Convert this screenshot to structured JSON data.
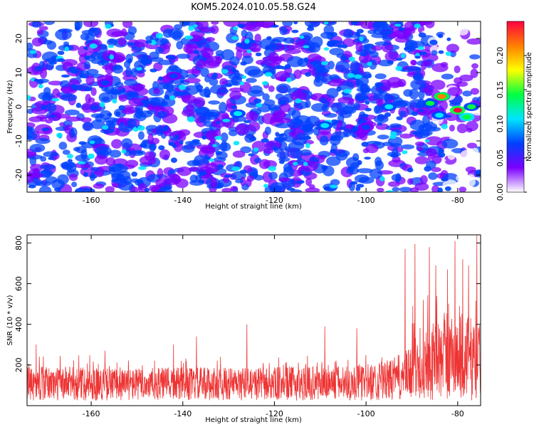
{
  "page_title": "KOM5.2024.010.05.58.G24",
  "chart_data": [
    {
      "type": "heatmap",
      "title": "KOM5.2024.010.05.58.G24",
      "xlabel": "Height of straight line (km)",
      "ylabel": "Frequency (Hz)",
      "xlim": [
        -174,
        -75
      ],
      "ylim": [
        -25,
        25
      ],
      "x_ticks": [
        -160,
        -140,
        -120,
        -100,
        -80
      ],
      "y_ticks": [
        -20,
        -10,
        0,
        10,
        20
      ],
      "colorbar": {
        "label": "Normalized spectral amplitude",
        "range": [
          0,
          0.25
        ],
        "ticks": [
          "0.00",
          "0.05",
          "0.10",
          "0.15",
          "0.20"
        ],
        "colors": [
          "#ffffff",
          "#7b00ff",
          "#0040ff",
          "#00e5ff",
          "#00ff40",
          "#ffff00",
          "#ff7f00",
          "#ff0040"
        ]
      },
      "hotspots": [
        {
          "x": -83.5,
          "y": 3,
          "value": 0.22
        },
        {
          "x": -80,
          "y": -1,
          "value": 0.24
        },
        {
          "x": -86,
          "y": 1,
          "value": 0.14
        },
        {
          "x": -78,
          "y": -3,
          "value": 0.16
        },
        {
          "x": -77,
          "y": 0,
          "value": 0.13
        },
        {
          "x": -84,
          "y": -2.5,
          "value": 0.12
        },
        {
          "x": -128,
          "y": -2,
          "value": 0.11
        },
        {
          "x": -109,
          "y": -5.5,
          "value": 0.1
        },
        {
          "x": -142,
          "y": 9,
          "value": 0.08
        },
        {
          "x": -157,
          "y": 7,
          "value": 0.08
        },
        {
          "x": -95,
          "y": 0,
          "value": 0.09
        },
        {
          "x": -100,
          "y": -6,
          "value": 0.08
        }
      ],
      "grid": false
    },
    {
      "type": "line",
      "xlabel": "Height of straight line (km)",
      "ylabel": "SNR (10 * v/v)",
      "xlim": [
        -174,
        -75
      ],
      "ylim": [
        0,
        840
      ],
      "x_ticks": [
        -160,
        -140,
        -120,
        -100,
        -80
      ],
      "y_ticks": [
        200,
        400,
        600,
        800
      ],
      "series": [
        {
          "color": "#ee3333",
          "x": [
            -174,
            -165,
            -155,
            -145,
            -135,
            -125,
            -115,
            -105,
            -100,
            -95,
            -91,
            -89,
            -87,
            -85,
            -83,
            -81,
            -79,
            -77,
            -75
          ],
          "values": [
            130,
            135,
            128,
            130,
            132,
            130,
            135,
            140,
            145,
            160,
            200,
            260,
            290,
            310,
            330,
            340,
            350,
            330,
            300
          ],
          "peaks": [
            {
              "x": -91.5,
              "y": 770
            },
            {
              "x": -89.3,
              "y": 795
            },
            {
              "x": -86.2,
              "y": 780
            },
            {
              "x": -84.8,
              "y": 690
            },
            {
              "x": -82.2,
              "y": 670
            },
            {
              "x": -80.6,
              "y": 810
            },
            {
              "x": -78.9,
              "y": 720
            },
            {
              "x": -77.6,
              "y": 690
            },
            {
              "x": -75.8,
              "y": 840
            },
            {
              "x": -87.5,
              "y": 520
            },
            {
              "x": -89.8,
              "y": 490
            },
            {
              "x": -109,
              "y": 390
            },
            {
              "x": -126,
              "y": 400
            },
            {
              "x": -137,
              "y": 340
            },
            {
              "x": -142,
              "y": 300
            },
            {
              "x": -102,
              "y": 380
            },
            {
              "x": -172,
              "y": 300
            },
            {
              "x": -157,
              "y": 270
            }
          ]
        }
      ]
    }
  ]
}
